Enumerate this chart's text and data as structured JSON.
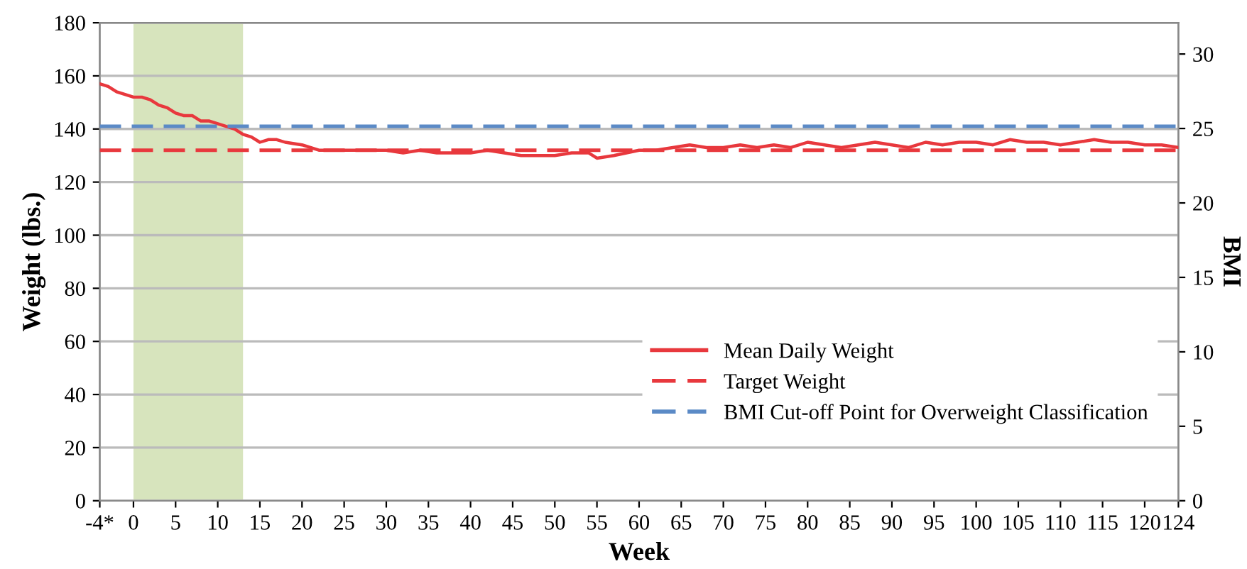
{
  "chart_data": {
    "type": "line",
    "xlabel": "Week",
    "ylabel": "Weight (lbs.)",
    "y2label": "BMI",
    "xlim": [
      -4,
      124
    ],
    "xticks": [
      {
        "value": -4,
        "label": "-4*"
      },
      0,
      5,
      10,
      15,
      20,
      25,
      30,
      35,
      40,
      45,
      50,
      55,
      60,
      65,
      70,
      75,
      80,
      85,
      90,
      95,
      100,
      105,
      110,
      115,
      120,
      124
    ],
    "ylim": [
      0,
      180
    ],
    "yticks": [
      0,
      20,
      40,
      60,
      80,
      100,
      120,
      140,
      160,
      180
    ],
    "y2lim": [
      0,
      32.1
    ],
    "y2ticks": [
      0,
      5,
      10,
      15,
      20,
      25,
      30
    ],
    "grid": "y",
    "legend": "bottom right",
    "marker": "none",
    "series": [
      {
        "name": "Mean Daily Weight",
        "color": "#e8383d",
        "line_style": "solid",
        "x": [
          -4,
          -3,
          -2,
          -1,
          0,
          1,
          2,
          3,
          4,
          5,
          6,
          7,
          8,
          9,
          10,
          11,
          12,
          13,
          14,
          15,
          16,
          17,
          18,
          20,
          22,
          24,
          26,
          28,
          30,
          32,
          34,
          36,
          38,
          40,
          42,
          44,
          46,
          48,
          50,
          52,
          54,
          55,
          57,
          60,
          62,
          64,
          66,
          68,
          70,
          72,
          74,
          76,
          78,
          80,
          82,
          84,
          86,
          88,
          90,
          92,
          94,
          96,
          98,
          100,
          102,
          104,
          106,
          108,
          110,
          112,
          114,
          116,
          118,
          120,
          122,
          124
        ],
        "values": [
          157,
          156,
          154,
          153,
          152,
          152,
          151,
          149,
          148,
          146,
          145,
          145,
          143,
          143,
          142,
          141,
          140,
          138,
          137,
          135,
          136,
          136,
          135,
          134,
          132,
          132,
          132,
          132,
          132,
          131,
          132,
          131,
          131,
          131,
          132,
          131,
          130,
          130,
          130,
          131,
          131,
          129,
          130,
          132,
          132,
          133,
          134,
          133,
          133,
          134,
          133,
          134,
          133,
          135,
          134,
          133,
          134,
          135,
          134,
          133,
          135,
          134,
          135,
          135,
          134,
          136,
          135,
          135,
          134,
          135,
          136,
          135,
          135,
          134,
          134,
          133
        ]
      },
      {
        "name": "Target Weight",
        "color": "#e8383d",
        "line_style": "dashed",
        "x": [
          -4,
          124
        ],
        "values": [
          132,
          132
        ]
      },
      {
        "name": "BMI Cut-off Point for Overweight Classification",
        "color": "#5b8ac6",
        "line_style": "dashed",
        "x": [
          -4,
          124
        ],
        "values": [
          141,
          141
        ]
      }
    ],
    "bands": [
      {
        "axis": "x",
        "from": 0,
        "to": 13,
        "color": "#d7e4bd"
      }
    ]
  }
}
